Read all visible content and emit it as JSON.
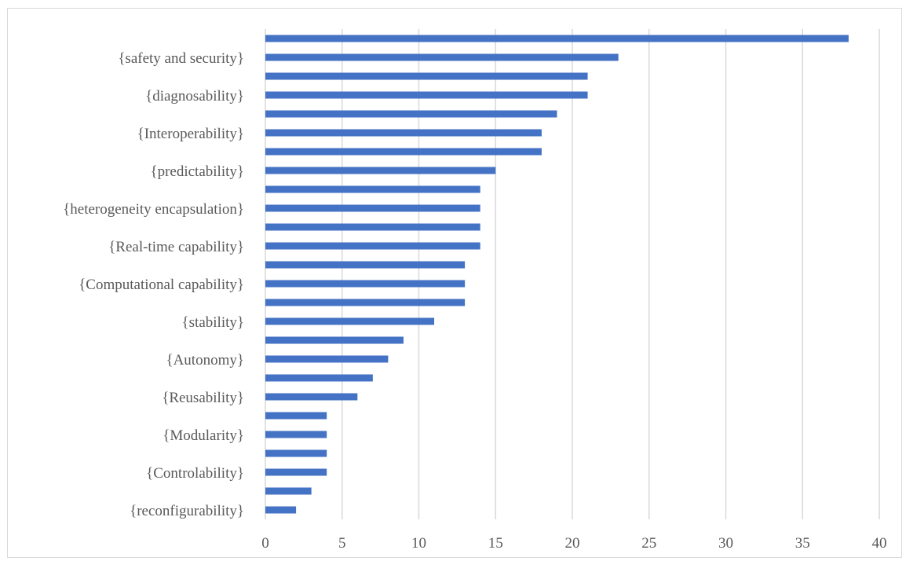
{
  "chart_data": {
    "type": "bar",
    "orientation": "horizontal",
    "title": "",
    "xlabel": "",
    "ylabel": "",
    "xlim": [
      0,
      40
    ],
    "xticks": [
      0,
      5,
      10,
      15,
      20,
      25,
      30,
      35,
      40
    ],
    "grid": "vertical",
    "bar_color": "#4472c4",
    "categories": [
      "",
      "{safety and security}",
      "",
      "{diagnosability}",
      "",
      "{Interoperability}",
      "",
      "{predictability}",
      "",
      "{heterogeneity encapsulation}",
      "",
      "{Real-time capability}",
      "",
      "{Computational capability}",
      "",
      "{stability}",
      "",
      "{Autonomy}",
      "",
      "{Reusability}",
      "",
      "{Modularity}",
      "",
      "{Controlability}",
      "",
      "{reconfigurability}"
    ],
    "values": [
      38,
      23,
      21,
      21,
      19,
      18,
      18,
      15,
      14,
      14,
      14,
      14,
      13,
      13,
      13,
      11,
      9,
      8,
      7,
      6,
      4,
      4,
      4,
      4,
      3,
      2
    ]
  }
}
